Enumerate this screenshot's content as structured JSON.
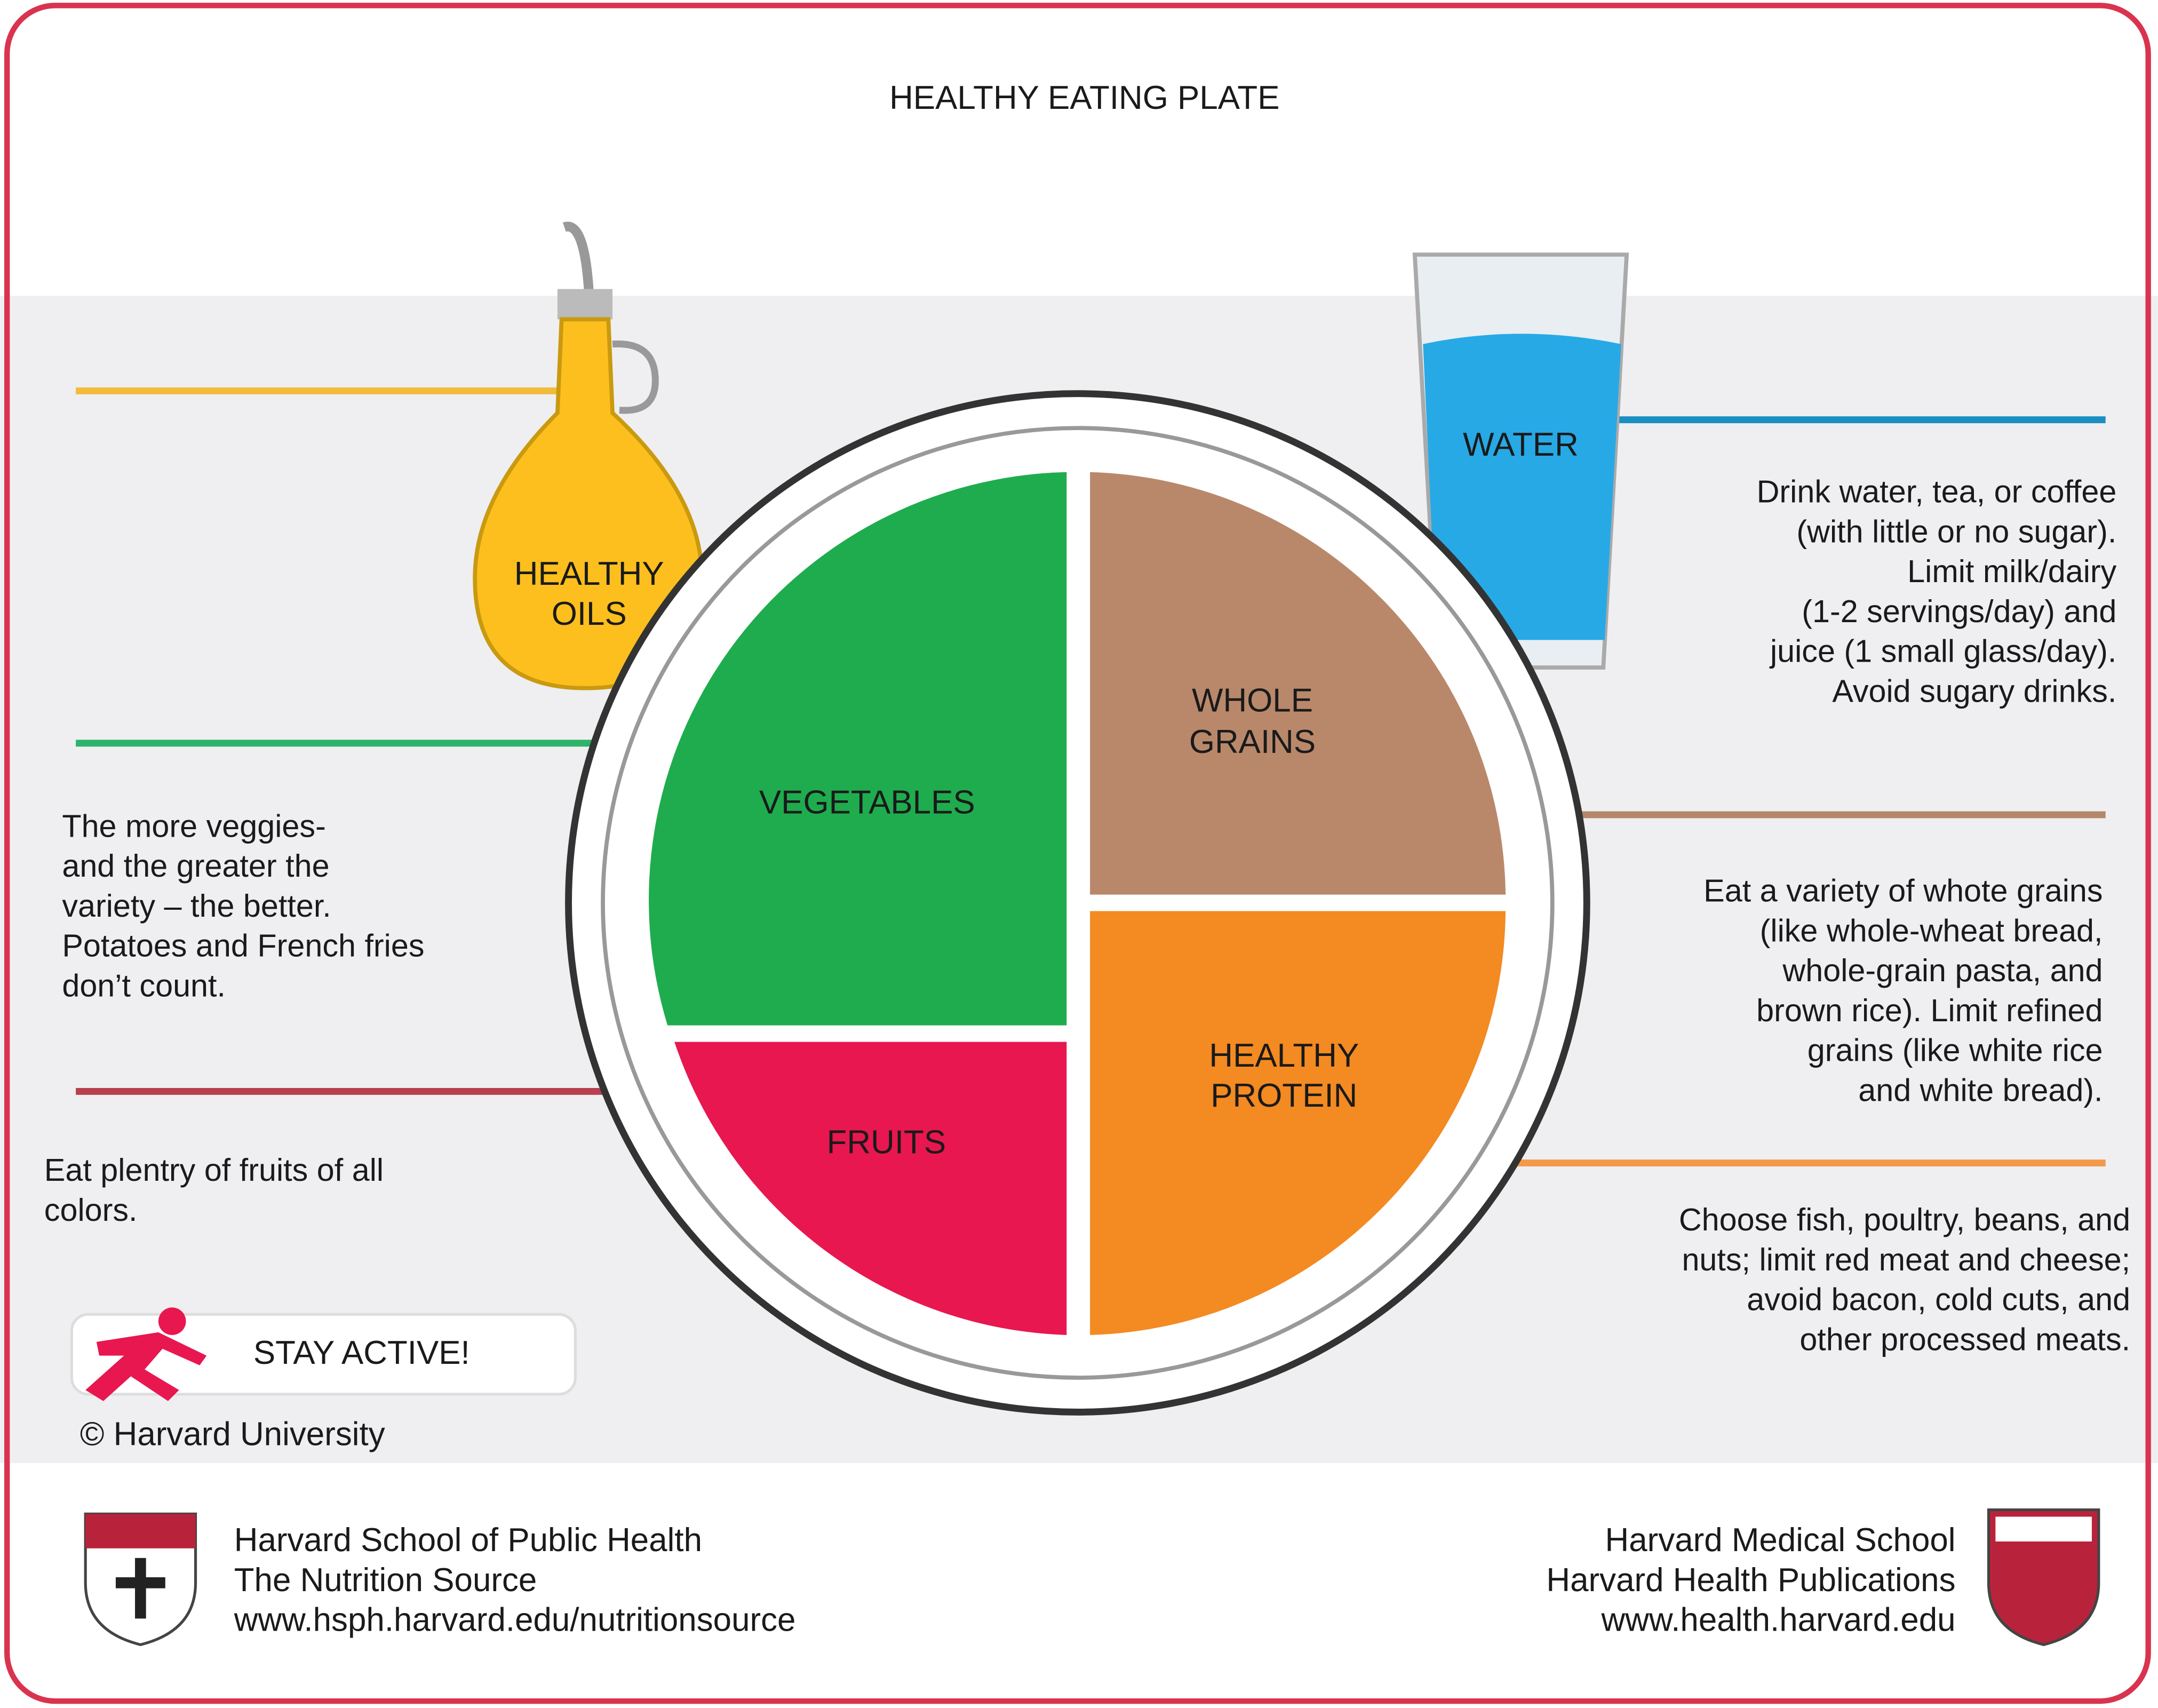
{
  "title": "HEALTHY EATING PLATE",
  "oils": {
    "label": [
      "HEALTHY",
      "OILS"
    ]
  },
  "water": {
    "label": "WATER",
    "text": [
      "Drink water, tea, or coffee",
      "(with little or no sugar).",
      "Limit milk/dairy",
      "(1-2 servings/day) and",
      "juice (1 small glass/day).",
      "Avoid sugary drinks."
    ]
  },
  "vegetables": {
    "label": "VEGETABLES",
    "text": [
      "The more veggies-",
      "and the greater the",
      "variety – the better.",
      "Potatoes and French fries",
      "don’t count."
    ]
  },
  "whole_grains": {
    "label": [
      "WHOLE",
      "GRAINS"
    ],
    "text": [
      "Eat a variety of whote grains",
      "(like whole-wheat bread,",
      "whole-grain pasta, and",
      "brown rice). Limit refined",
      "grains (like white rice",
      "and white bread)."
    ]
  },
  "fruits": {
    "label": "FRUITS",
    "text": [
      "Eat plentry of fruits of all",
      "colors."
    ]
  },
  "protein": {
    "label": [
      "HEALTHY",
      "PROTEIN"
    ],
    "text": [
      "Choose fish, poultry, beans, and",
      "nuts; limit red meat and cheese;",
      "avoid bacon, cold cuts, and",
      "other processed meats."
    ]
  },
  "stay_active": "STAY ACTIVE!",
  "copyright": "© Harvard University",
  "footer": {
    "left": [
      "Harvard School of Public Health",
      "The Nutrition Source",
      "www.hsph.harvard.edu/nutritionsource"
    ],
    "right": [
      "Harvard Medical School",
      "Harvard Health Publications",
      "www.health.harvard.edu"
    ]
  }
}
